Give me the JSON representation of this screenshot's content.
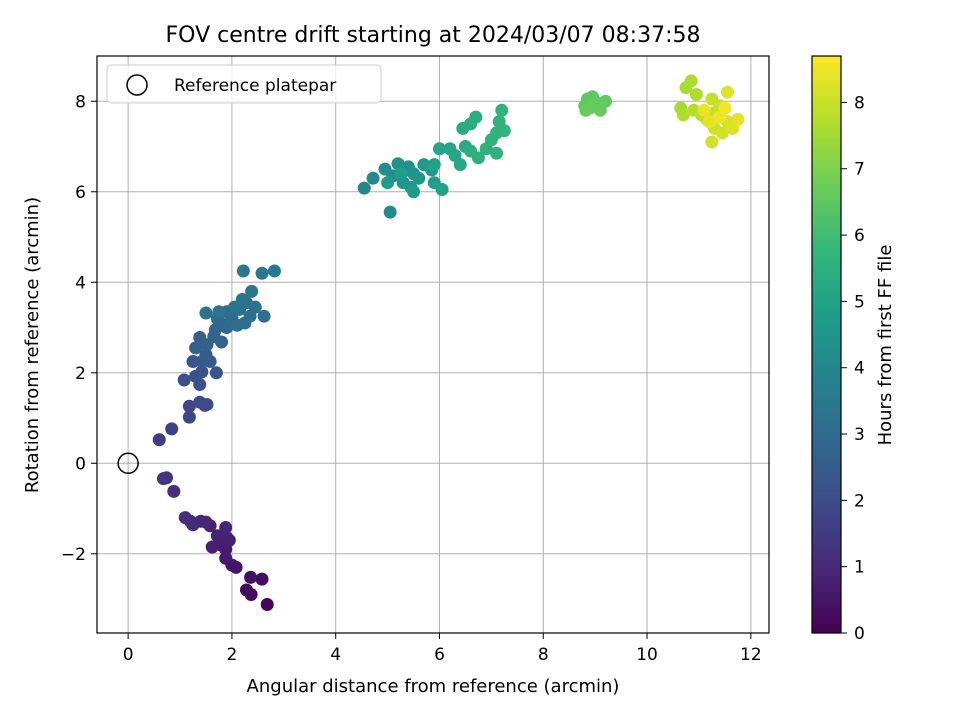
{
  "chart_data": {
    "type": "scatter",
    "title": "FOV centre drift starting at 2024/03/07 08:37:58",
    "xlabel": "Angular distance from reference (arcmin)",
    "ylabel": "Rotation from reference (arcmin)",
    "xlim": [
      -0.6,
      12.35
    ],
    "ylim": [
      -3.75,
      9.0
    ],
    "x_ticks": [
      0,
      2,
      4,
      6,
      8,
      10,
      12
    ],
    "y_ticks": [
      -2,
      0,
      2,
      4,
      6,
      8
    ],
    "x_tick_labels": [
      "0",
      "2",
      "4",
      "6",
      "8",
      "10",
      "12"
    ],
    "y_tick_labels": [
      "−2",
      "0",
      "2",
      "4",
      "6",
      "8"
    ],
    "grid": true,
    "legend": {
      "position": "top-left",
      "entries": [
        "Reference platepar"
      ]
    },
    "reference_point": {
      "label": "Reference platepar",
      "x": 0,
      "y": 0
    },
    "colorbar": {
      "label": "Hours from first FF file",
      "colormap": "viridis",
      "range": [
        0,
        8.7
      ],
      "ticks": [
        0,
        1,
        2,
        3,
        4,
        5,
        6,
        7,
        8
      ],
      "tick_labels": [
        "0",
        "1",
        "2",
        "3",
        "4",
        "5",
        "6",
        "7",
        "8"
      ]
    },
    "series": [
      {
        "values": [
          [
            2.68,
            -3.12,
            0.1
          ],
          [
            2.28,
            -2.8,
            0.2
          ],
          [
            2.37,
            -2.9,
            0.25
          ],
          [
            2.58,
            -2.56,
            0.3
          ],
          [
            2.36,
            -2.52,
            0.35
          ],
          [
            2.08,
            -2.3,
            0.45
          ],
          [
            2.0,
            -2.25,
            0.5
          ],
          [
            1.88,
            -2.1,
            0.6
          ],
          [
            1.88,
            -1.9,
            0.65
          ],
          [
            1.78,
            -1.8,
            0.7
          ],
          [
            1.62,
            -1.85,
            0.72
          ],
          [
            1.95,
            -1.7,
            0.75
          ],
          [
            1.9,
            -1.64,
            0.78
          ],
          [
            1.72,
            -1.6,
            0.8
          ],
          [
            1.58,
            -1.38,
            0.85
          ],
          [
            1.88,
            -1.42,
            0.88
          ],
          [
            1.5,
            -1.3,
            0.9
          ],
          [
            1.4,
            -1.28,
            0.95
          ],
          [
            1.25,
            -1.36,
            1.0
          ],
          [
            1.2,
            -1.28,
            1.05
          ],
          [
            1.1,
            -1.2,
            1.1
          ],
          [
            0.88,
            -0.62,
            1.2
          ],
          [
            0.74,
            -0.32,
            1.3
          ],
          [
            0.68,
            -0.34,
            1.35
          ],
          [
            0.6,
            0.52,
            1.6
          ],
          [
            0.84,
            0.76,
            1.65
          ],
          [
            1.18,
            1.02,
            1.8
          ],
          [
            1.18,
            1.26,
            1.85
          ],
          [
            1.38,
            1.35,
            1.9
          ],
          [
            1.52,
            1.3,
            1.95
          ],
          [
            1.48,
            1.28,
            2.0
          ],
          [
            1.08,
            1.84,
            2.1
          ],
          [
            1.38,
            1.74,
            2.15
          ],
          [
            1.3,
            1.92,
            2.2
          ],
          [
            1.42,
            2.02,
            2.25
          ],
          [
            1.25,
            2.25,
            2.3
          ],
          [
            1.42,
            2.25,
            2.35
          ],
          [
            1.7,
            2.0,
            2.4
          ],
          [
            1.58,
            2.25,
            2.45
          ],
          [
            1.5,
            2.4,
            2.5
          ],
          [
            1.3,
            2.55,
            2.55
          ],
          [
            1.38,
            2.78,
            2.6
          ],
          [
            1.52,
            2.62,
            2.65
          ],
          [
            1.65,
            2.8,
            2.7
          ],
          [
            1.8,
            2.68,
            2.75
          ],
          [
            1.68,
            2.95,
            2.8
          ],
          [
            1.78,
            3.1,
            2.85
          ],
          [
            1.9,
            3.0,
            2.9
          ],
          [
            1.72,
            3.2,
            2.95
          ],
          [
            1.9,
            3.35,
            3.0
          ],
          [
            2.0,
            3.22,
            3.05
          ],
          [
            2.1,
            3.05,
            3.1
          ],
          [
            2.25,
            3.1,
            3.1
          ],
          [
            2.35,
            3.25,
            3.15
          ],
          [
            2.15,
            3.4,
            3.15
          ],
          [
            2.28,
            3.55,
            3.2
          ],
          [
            2.45,
            3.45,
            3.2
          ],
          [
            2.62,
            3.25,
            3.25
          ],
          [
            1.5,
            3.32,
            3.25
          ],
          [
            1.75,
            3.35,
            3.3
          ],
          [
            2.05,
            3.45,
            3.3
          ],
          [
            2.2,
            3.62,
            3.35
          ],
          [
            2.38,
            3.8,
            3.4
          ],
          [
            2.22,
            4.25,
            3.45
          ],
          [
            2.58,
            4.2,
            3.5
          ],
          [
            2.82,
            4.25,
            3.5
          ],
          [
            4.55,
            6.08,
            4.0
          ],
          [
            4.72,
            6.3,
            4.1
          ],
          [
            5.05,
            5.55,
            4.15
          ],
          [
            4.95,
            6.5,
            4.2
          ],
          [
            5.1,
            6.35,
            4.25
          ],
          [
            5.3,
            6.45,
            4.3
          ],
          [
            5.2,
            6.62,
            4.35
          ],
          [
            5.4,
            6.55,
            4.4
          ],
          [
            5.5,
            6.4,
            4.45
          ],
          [
            5.3,
            6.2,
            4.5
          ],
          [
            5.45,
            6.1,
            4.55
          ],
          [
            5.6,
            6.3,
            4.6
          ],
          [
            5.7,
            6.6,
            4.65
          ],
          [
            5.85,
            6.48,
            4.7
          ],
          [
            5.5,
            6.0,
            4.75
          ],
          [
            5.0,
            6.2,
            4.8
          ],
          [
            5.25,
            6.4,
            4.85
          ],
          [
            5.9,
            6.2,
            4.9
          ],
          [
            6.05,
            6.05,
            4.95
          ],
          [
            5.9,
            6.6,
            5.0
          ],
          [
            6.0,
            6.95,
            5.05
          ],
          [
            6.2,
            6.95,
            5.1
          ],
          [
            6.3,
            6.8,
            5.15
          ],
          [
            6.4,
            6.6,
            5.2
          ],
          [
            6.5,
            7.0,
            5.25
          ],
          [
            6.45,
            7.4,
            5.3
          ],
          [
            6.6,
            7.5,
            5.35
          ],
          [
            6.7,
            7.65,
            5.4
          ],
          [
            6.6,
            6.9,
            5.45
          ],
          [
            6.75,
            6.75,
            5.5
          ],
          [
            6.9,
            6.95,
            5.5
          ],
          [
            7.0,
            7.15,
            5.55
          ],
          [
            7.1,
            6.85,
            5.55
          ],
          [
            7.1,
            7.3,
            5.6
          ],
          [
            7.15,
            7.55,
            5.6
          ],
          [
            7.25,
            7.35,
            5.65
          ],
          [
            7.2,
            7.8,
            5.65
          ],
          [
            8.8,
            7.9,
            6.5
          ],
          [
            8.85,
            8.05,
            6.55
          ],
          [
            8.95,
            8.1,
            6.55
          ],
          [
            9.05,
            7.95,
            6.6
          ],
          [
            9.2,
            8.0,
            6.6
          ],
          [
            8.9,
            7.85,
            6.65
          ],
          [
            9.1,
            7.8,
            6.65
          ],
          [
            8.82,
            7.8,
            6.7
          ],
          [
            10.65,
            7.85,
            7.5
          ],
          [
            10.75,
            8.3,
            7.55
          ],
          [
            10.85,
            8.45,
            7.6
          ],
          [
            10.95,
            8.15,
            7.65
          ],
          [
            10.7,
            7.7,
            7.7
          ],
          [
            10.9,
            7.8,
            7.75
          ],
          [
            11.05,
            7.7,
            7.8
          ],
          [
            11.15,
            7.6,
            7.85
          ],
          [
            11.3,
            7.75,
            7.9
          ],
          [
            11.25,
            8.05,
            7.95
          ],
          [
            11.4,
            7.9,
            8.0
          ],
          [
            11.3,
            7.4,
            8.05
          ],
          [
            11.25,
            7.1,
            8.1
          ],
          [
            11.45,
            7.3,
            8.15
          ],
          [
            11.55,
            7.55,
            8.2
          ],
          [
            11.65,
            7.4,
            8.25
          ],
          [
            11.55,
            8.2,
            8.3
          ],
          [
            11.75,
            7.6,
            8.35
          ],
          [
            11.2,
            7.55,
            8.4
          ],
          [
            11.1,
            7.8,
            8.45
          ],
          [
            11.4,
            7.65,
            8.5
          ],
          [
            11.5,
            7.85,
            8.55
          ]
        ]
      }
    ]
  }
}
